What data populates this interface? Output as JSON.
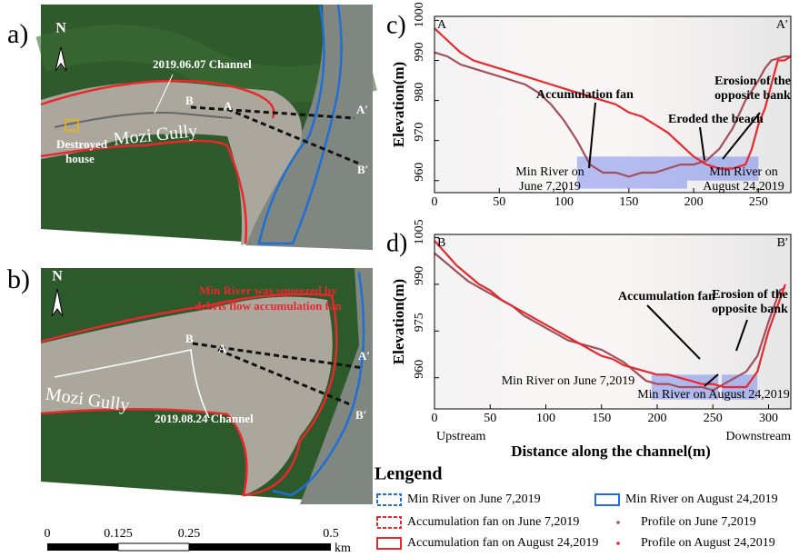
{
  "panels": {
    "a": {
      "label": "a)",
      "north": "N",
      "channel": "2019.06.07 Channel",
      "house": [
        "Destroyed",
        "house"
      ],
      "gully": "Mozi Gully",
      "A": "A",
      "A2": "A′",
      "B": "B",
      "B2": "B′"
    },
    "b": {
      "label": "b)",
      "north": "N",
      "note": [
        "Min River was squeezed by",
        "debris flow accumulation fan"
      ],
      "channel": "2019.08.24 Channel",
      "gully": "Mozi Gully",
      "A": "A",
      "A2": "A′",
      "B": "B",
      "B2": "B′"
    }
  },
  "scale_bar": {
    "ticks": [
      "0",
      "0.125",
      "0.25",
      "0.5"
    ],
    "unit": "km"
  },
  "x_axis_label": "Distance along the channel(m)",
  "upstream": "Upstream",
  "downstream": "Downstream",
  "legend": {
    "title": "Lengend",
    "items": [
      {
        "label": "Min River on June 7,2019",
        "color": "#1f6fd6",
        "style": "dashed"
      },
      {
        "label": "Min River on August 24,2019",
        "color": "#1f6fd6",
        "style": "solid"
      },
      {
        "label": "Accumulation fan on June 7,2019",
        "color": "#e8282c",
        "style": "dashed"
      },
      {
        "label": "Accumulation fan on August 24,2019",
        "color": "#e8282c",
        "style": "solid"
      }
    ]
  },
  "chart_data": [
    {
      "type": "line",
      "panel_label": "c)",
      "start_label": "A",
      "end_label": "A′",
      "ylabel": "Elevation(m)",
      "xlim": [
        0,
        275
      ],
      "ylim": [
        957,
        1001
      ],
      "xticks": [
        0,
        50,
        100,
        150,
        200,
        250
      ],
      "yticks": [
        960,
        970,
        980,
        990,
        1000
      ],
      "series": [
        {
          "name": "Profile on June 7,2019",
          "color": "#a3505c",
          "x": [
            0,
            10,
            20,
            30,
            40,
            50,
            60,
            70,
            80,
            90,
            100,
            110,
            120,
            130,
            140,
            150,
            160,
            170,
            180,
            190,
            200,
            210,
            220,
            230,
            240,
            250,
            255,
            260,
            270,
            275
          ],
          "values": [
            992,
            991,
            989,
            988,
            987,
            986,
            985,
            984,
            982,
            979,
            975,
            970,
            964,
            962,
            962,
            961,
            962,
            962,
            963,
            964,
            964,
            965,
            968,
            973,
            980,
            985,
            988,
            990,
            991,
            991
          ]
        },
        {
          "name": "Profile on August 24,2019",
          "color": "#e8282c",
          "x": [
            0,
            10,
            20,
            30,
            40,
            50,
            60,
            70,
            80,
            90,
            100,
            110,
            120,
            130,
            140,
            150,
            160,
            170,
            180,
            190,
            200,
            210,
            220,
            230,
            240,
            245,
            250,
            255,
            260,
            265,
            270,
            275
          ],
          "values": [
            998,
            995,
            992,
            990,
            989,
            988,
            987,
            986,
            985,
            984,
            983,
            982,
            981,
            980,
            979,
            977,
            976,
            974,
            972,
            969,
            966,
            964,
            963,
            963,
            964,
            968,
            974,
            978,
            984,
            990,
            990,
            991
          ]
        }
      ],
      "bands": [
        {
          "x": [
            110,
            195
          ],
          "y": [
            958,
            966
          ]
        },
        {
          "x": [
            195,
            250
          ],
          "y": [
            960,
            966
          ]
        }
      ],
      "annotations": [
        [
          "Accumulation fan"
        ],
        [
          "Eroded the beach"
        ],
        [
          "Erosion of the",
          "opposite bank"
        ],
        [
          "Min River on",
          "June 7,2019"
        ],
        [
          "Min River on",
          "August 24,2019"
        ]
      ]
    },
    {
      "type": "line",
      "panel_label": "d)",
      "start_label": "B",
      "end_label": "B′",
      "ylabel": "Elevation(m)",
      "xlim": [
        0,
        320
      ],
      "ylim": [
        950,
        1006
      ],
      "xticks": [
        0,
        50,
        100,
        150,
        200,
        250,
        300
      ],
      "yticks": [
        960,
        975,
        990,
        1005
      ],
      "series": [
        {
          "name": "Profile on June 7,2019",
          "color": "#a3505c",
          "x": [
            0,
            10,
            20,
            30,
            40,
            50,
            60,
            70,
            80,
            90,
            100,
            110,
            120,
            130,
            140,
            150,
            160,
            170,
            180,
            190,
            200,
            210,
            220,
            230,
            240,
            250,
            260,
            270,
            280,
            290,
            300,
            310,
            315
          ],
          "values": [
            1000,
            997,
            994,
            991,
            989,
            987,
            985,
            983,
            980,
            978,
            976,
            974,
            972,
            971,
            970,
            969,
            967,
            965,
            962,
            959,
            958,
            958,
            957,
            957,
            957,
            956,
            958,
            960,
            962,
            967,
            978,
            988,
            989
          ]
        },
        {
          "name": "Profile on August 24,2019",
          "color": "#e8282c",
          "x": [
            0,
            10,
            20,
            30,
            40,
            50,
            60,
            70,
            80,
            90,
            100,
            110,
            120,
            130,
            140,
            150,
            160,
            170,
            180,
            190,
            200,
            210,
            220,
            230,
            240,
            250,
            260,
            270,
            280,
            290,
            300,
            310,
            315
          ],
          "values": [
            1004,
            1000,
            996,
            993,
            990,
            988,
            985,
            983,
            981,
            979,
            977,
            975,
            973,
            971,
            969,
            967,
            966,
            964,
            963,
            962,
            961,
            961,
            960,
            959,
            958,
            958,
            957,
            957,
            957,
            962,
            975,
            985,
            990
          ]
        }
      ],
      "bands": [
        {
          "x": [
            195,
            255
          ],
          "y": [
            953,
            961
          ]
        },
        {
          "x": [
            258,
            290
          ],
          "y": [
            953,
            961
          ]
        }
      ],
      "annotations": [
        [
          "Accumulation fan"
        ],
        [
          "Erosion of the",
          "opposite bank"
        ],
        [
          "Min River on June 7,2019"
        ],
        [
          "Min River on August 24,2019"
        ]
      ]
    }
  ]
}
